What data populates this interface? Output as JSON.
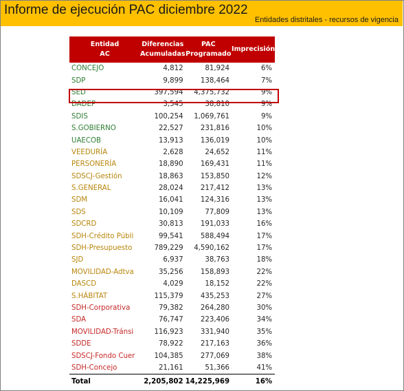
{
  "header": {
    "title": "Informe de ejecución PAC diciembre 2022",
    "subtitle": "Entidades distritales - recursos de vigencia"
  },
  "table": {
    "columns": [
      "Entidad\nAC",
      "Diferencias\nAcumuladas",
      "PAC\nProgramado",
      "Imprecisión"
    ],
    "rows": [
      {
        "entity": "CONCEJO",
        "diff": "4,812",
        "pac": "81,924",
        "pct": "6%",
        "color": "#2e7d32"
      },
      {
        "entity": "SDP",
        "diff": "9,899",
        "pac": "138,464",
        "pct": "7%",
        "color": "#2e7d32"
      },
      {
        "entity": "SED",
        "diff": "397,594",
        "pac": "4,375,732",
        "pct": "9%",
        "color": "#2e7d32"
      },
      {
        "entity": "DADEP",
        "diff": "3,545",
        "pac": "38,810",
        "pct": "9%",
        "color": "#2e7d32"
      },
      {
        "entity": "SDIS",
        "diff": "100,254",
        "pac": "1,069,761",
        "pct": "9%",
        "color": "#2e7d32"
      },
      {
        "entity": "S.GOBIERNO",
        "diff": "22,527",
        "pac": "231,816",
        "pct": "10%",
        "color": "#2e7d32"
      },
      {
        "entity": "UAECOB",
        "diff": "13,913",
        "pac": "136,019",
        "pct": "10%",
        "color": "#2e7d32"
      },
      {
        "entity": "VEEDURÍA",
        "diff": "2,628",
        "pac": "24,652",
        "pct": "11%",
        "color": "#b8860b"
      },
      {
        "entity": "PERSONERÍA",
        "diff": "18,890",
        "pac": "169,431",
        "pct": "11%",
        "color": "#b8860b"
      },
      {
        "entity": "SDSCJ-Gestión",
        "diff": "18,863",
        "pac": "153,850",
        "pct": "12%",
        "color": "#b8860b"
      },
      {
        "entity": "S.GENERAL",
        "diff": "28,024",
        "pac": "217,412",
        "pct": "13%",
        "color": "#b8860b"
      },
      {
        "entity": "SDM",
        "diff": "16,041",
        "pac": "124,316",
        "pct": "13%",
        "color": "#b8860b"
      },
      {
        "entity": "SDS",
        "diff": "10,109",
        "pac": "77,809",
        "pct": "13%",
        "color": "#b8860b"
      },
      {
        "entity": "SDCRD",
        "diff": "30,813",
        "pac": "191,033",
        "pct": "16%",
        "color": "#b8860b"
      },
      {
        "entity": "SDH-Crédito Públi",
        "diff": "99,541",
        "pac": "588,494",
        "pct": "17%",
        "color": "#b8860b"
      },
      {
        "entity": "SDH-Presupuesto",
        "diff": "789,229",
        "pac": "4,590,162",
        "pct": "17%",
        "color": "#b8860b"
      },
      {
        "entity": "SJD",
        "diff": "6,937",
        "pac": "38,763",
        "pct": "18%",
        "color": "#b8860b"
      },
      {
        "entity": "MOVILIDAD-Adtva",
        "diff": "35,256",
        "pac": "158,893",
        "pct": "22%",
        "color": "#b8860b"
      },
      {
        "entity": "DASCD",
        "diff": "4,029",
        "pac": "18,152",
        "pct": "22%",
        "color": "#b8860b"
      },
      {
        "entity": "S.HÁBITAT",
        "diff": "115,379",
        "pac": "435,253",
        "pct": "27%",
        "color": "#b8860b"
      },
      {
        "entity": "SDH-Corporativa",
        "diff": "79,382",
        "pac": "264,280",
        "pct": "30%",
        "color": "#c62828"
      },
      {
        "entity": "SDA",
        "diff": "76,747",
        "pac": "223,406",
        "pct": "34%",
        "color": "#c62828"
      },
      {
        "entity": "MOVILIDAD-Tránsi",
        "diff": "116,923",
        "pac": "331,940",
        "pct": "35%",
        "color": "#c62828"
      },
      {
        "entity": "SDDE",
        "diff": "78,922",
        "pac": "217,163",
        "pct": "36%",
        "color": "#c62828"
      },
      {
        "entity": "SDSCJ-Fondo Cuer",
        "diff": "104,385",
        "pac": "277,069",
        "pct": "38%",
        "color": "#c62828"
      },
      {
        "entity": "SDH-Concejo",
        "diff": "21,161",
        "pac": "51,366",
        "pct": "41%",
        "color": "#c62828"
      }
    ],
    "total": {
      "entity": "Total",
      "diff": "2,205,802",
      "pac": "14,225,969",
      "pct": "16%"
    }
  }
}
